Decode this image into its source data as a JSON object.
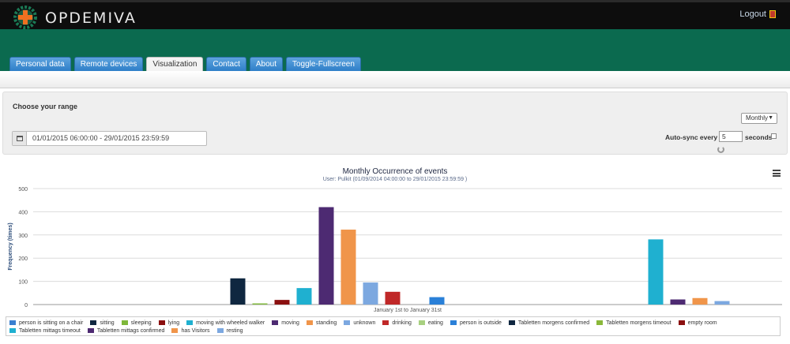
{
  "app": {
    "brand": "OPDEMIVA",
    "logout_label": "Logout"
  },
  "tabs": [
    {
      "label": "Personal data"
    },
    {
      "label": "Remote devices"
    },
    {
      "label": "Visualization",
      "active": true
    },
    {
      "label": "Contact"
    },
    {
      "label": "About"
    },
    {
      "label": "Toggle-Fullscreen"
    }
  ],
  "range": {
    "heading": "Choose your range",
    "date_value": "01/01/2015 06:00:00 - 29/01/2015 23:59:59",
    "period_select": "Monthly",
    "autosync_label": "Auto-sync every",
    "autosync_value": "5",
    "seconds_label": "seconds"
  },
  "colors": {
    "header": "#0d0d0d",
    "brand_green": "#0b6a4f",
    "tab_blue": "#2e7fc8"
  },
  "chart_data": {
    "type": "bar",
    "title": "Monthly Occurrence of events",
    "subtitle": "User: Pulkit (01/09/2014 04:00:00 to 29/01/2015 23:59:59 )",
    "ylabel": "Frequency (times)",
    "xlabel": "January 1st to January 31st",
    "ylim": [
      0,
      500
    ],
    "yticks": [
      "0",
      "100",
      "200",
      "300",
      "400",
      "500"
    ],
    "grid": true,
    "legend_position": "bottom",
    "series": [
      {
        "name": "person is sitting on a chair",
        "color": "#3a7fd0",
        "value": 0
      },
      {
        "name": "sitting",
        "color": "#0f2740",
        "value": 113
      },
      {
        "name": "sleeping",
        "color": "#7fb83a",
        "value": 5
      },
      {
        "name": "lying",
        "color": "#8b1010",
        "value": 20
      },
      {
        "name": "moving with wheeled walker",
        "color": "#1fb0d0",
        "value": 71
      },
      {
        "name": "moving",
        "color": "#4d2a72",
        "value": 420
      },
      {
        "name": "standing",
        "color": "#f0954a",
        "value": 323
      },
      {
        "name": "unknown",
        "color": "#7ca8e0",
        "value": 95
      },
      {
        "name": "drinking",
        "color": "#c02828",
        "value": 55
      },
      {
        "name": "eating",
        "color": "#a8d080",
        "value": 0
      },
      {
        "name": "person is outside",
        "color": "#2a80d8",
        "value": 32
      },
      {
        "name": "Tabletten morgens confirmed",
        "color": "#0f2740",
        "value": 0
      },
      {
        "name": "Tabletten morgens timeout",
        "color": "#8ab83a",
        "value": 0
      },
      {
        "name": "empty room",
        "color": "#8b1010",
        "value": 0
      },
      {
        "name": "Tabletten mittags timeout",
        "color": "#1fb0d0",
        "value": 281
      },
      {
        "name": "Tabletten mittags confirmed",
        "color": "#4d2a72",
        "value": 22
      },
      {
        "name": "has Visitors",
        "color": "#f0954a",
        "value": 28
      },
      {
        "name": "resting",
        "color": "#7ca8e0",
        "value": 15
      }
    ]
  }
}
